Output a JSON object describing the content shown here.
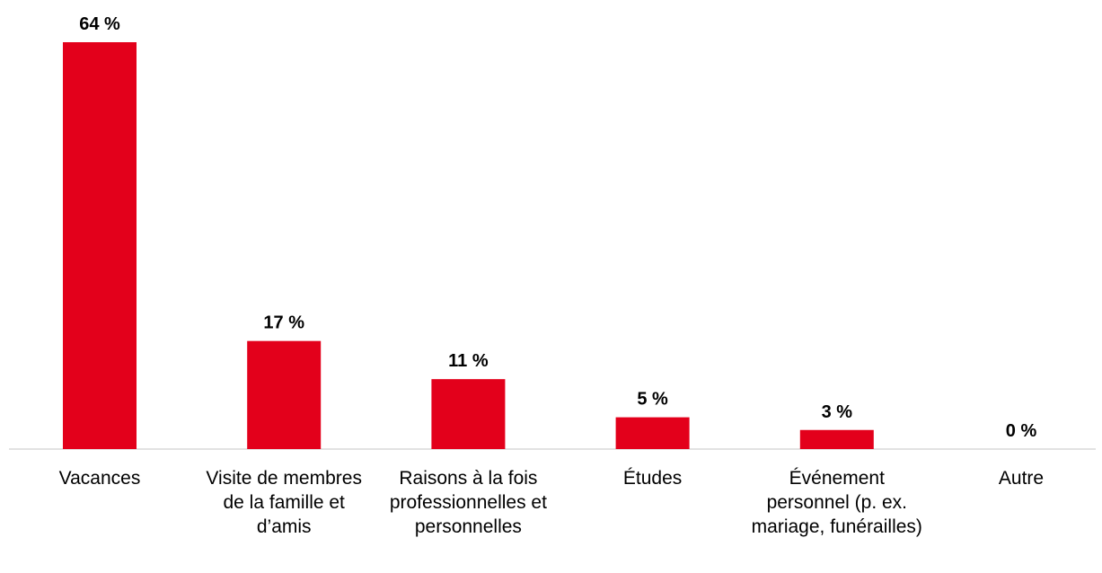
{
  "chart_data": {
    "type": "bar",
    "categories": [
      "Vacances",
      "Visite de membres de la famille et d’amis",
      "Raisons à la fois professionnelles et personnelles",
      "Études",
      "Événement personnel (p. ex. mariage, funérailles)",
      "Autre"
    ],
    "values": [
      64,
      17,
      11,
      5,
      3,
      0
    ],
    "value_labels": [
      "64 %",
      "17 %",
      "11 %",
      "5 %",
      "3 %",
      "0 %"
    ],
    "color": "#e3001b"
  }
}
